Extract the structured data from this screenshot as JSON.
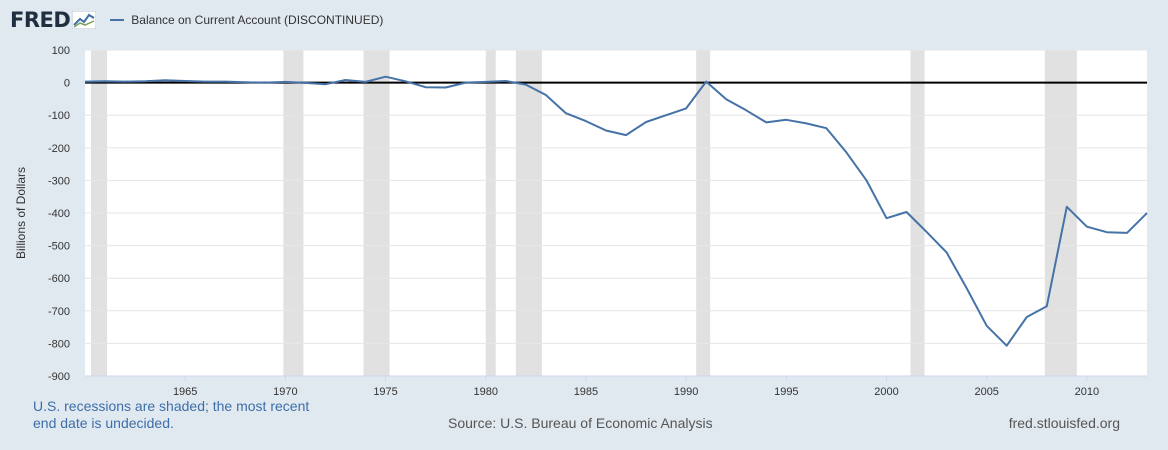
{
  "header": {
    "logo_text": "FRED",
    "series_label": "Balance on Current Account (DISCONTINUED)"
  },
  "colors": {
    "background": "#e1e9f0",
    "plot_background": "#ffffff",
    "series": "#4572a7",
    "recession": "#e1e1e1",
    "zero_line": "#000000",
    "note": "#3d6ea8"
  },
  "icons": {
    "logo_mark": "line-chart-icon"
  },
  "footer": {
    "note": "U.S. recessions are shaded; the most recent end date is undecided.",
    "source": "Source: U.S. Bureau of Economic Analysis",
    "url": "fred.stlouisfed.org"
  },
  "chart_data": {
    "type": "line",
    "title": "",
    "xlabel": "",
    "ylabel": "Billions of Dollars",
    "xlim": [
      1960,
      2013
    ],
    "ylim": [
      -900,
      100
    ],
    "xticks": [
      1965,
      1970,
      1975,
      1980,
      1985,
      1990,
      1995,
      2000,
      2005,
      2010
    ],
    "yticks": [
      100,
      0,
      -100,
      -200,
      -300,
      -400,
      -500,
      -600,
      -700,
      -800,
      -900
    ],
    "grid": true,
    "legend_position": "top-left",
    "reference_line": 0,
    "recessions": [
      [
        1960.3,
        1961.1
      ],
      [
        1969.9,
        1970.9
      ],
      [
        1973.9,
        1975.2
      ],
      [
        1980.0,
        1980.5
      ],
      [
        1981.5,
        1982.8
      ],
      [
        1990.5,
        1991.2
      ],
      [
        2001.2,
        2001.9
      ],
      [
        2007.9,
        2009.5
      ]
    ],
    "series": [
      {
        "name": "Balance on Current Account (DISCONTINUED)",
        "x": [
          1960,
          1961,
          1962,
          1963,
          1964,
          1965,
          1966,
          1967,
          1968,
          1969,
          1970,
          1971,
          1972,
          1973,
          1974,
          1975,
          1976,
          1977,
          1978,
          1979,
          1980,
          1981,
          1982,
          1983,
          1984,
          1985,
          1986,
          1987,
          1988,
          1989,
          1990,
          1991,
          1992,
          1993,
          1994,
          1995,
          1996,
          1997,
          1998,
          1999,
          2000,
          2001,
          2002,
          2003,
          2004,
          2005,
          2006,
          2007,
          2008,
          2009,
          2010,
          2011,
          2012,
          2013
        ],
        "values": [
          3,
          4,
          3,
          4,
          7,
          5,
          3,
          3,
          1,
          0,
          2,
          -1,
          -5,
          8,
          2,
          18,
          4,
          -14,
          -15,
          0,
          2,
          5,
          -6,
          -38,
          -94,
          -118,
          -147,
          -161,
          -121,
          -100,
          -79,
          3,
          -51,
          -85,
          -122,
          -114,
          -125,
          -140,
          -214,
          -300,
          -416,
          -397,
          -458,
          -521,
          -631,
          -746,
          -807,
          -719,
          -686,
          -381,
          -442,
          -459,
          -461,
          -400
        ]
      }
    ]
  }
}
